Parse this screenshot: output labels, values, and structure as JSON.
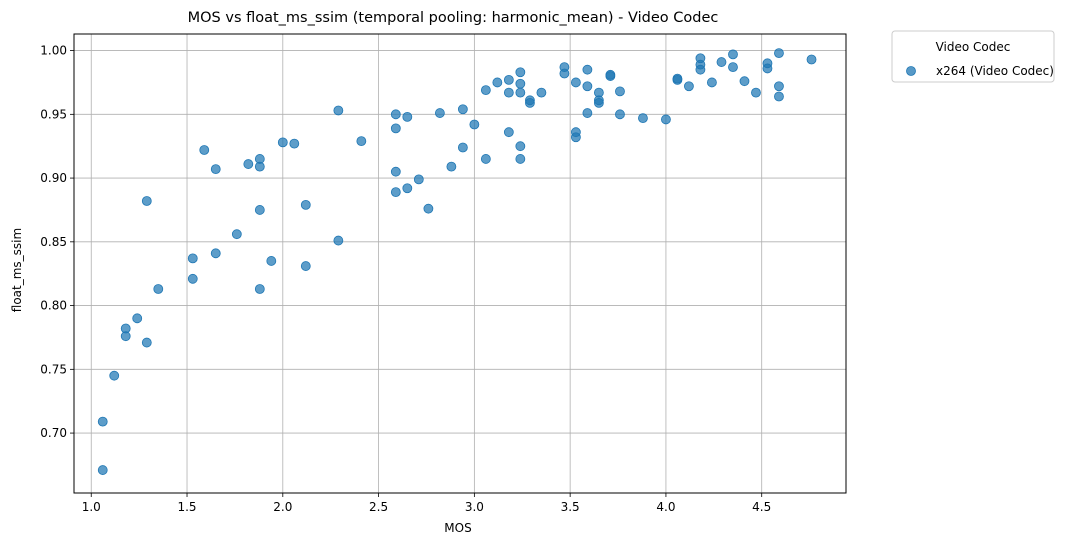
{
  "chart_data": {
    "type": "scatter",
    "title": "MOS vs float_ms_ssim (temporal pooling: harmonic_mean) - Video Codec",
    "xlabel": "MOS",
    "ylabel": "float_ms_ssim",
    "xlim": [
      0.91,
      4.94
    ],
    "ylim": [
      0.653,
      1.013
    ],
    "xticks": [
      1.0,
      1.5,
      2.0,
      2.5,
      3.0,
      3.5,
      4.0,
      4.5
    ],
    "xtick_labels": [
      "1.0",
      "1.5",
      "2.0",
      "2.5",
      "3.0",
      "3.5",
      "4.0",
      "4.5"
    ],
    "yticks": [
      0.7,
      0.75,
      0.8,
      0.85,
      0.9,
      0.95,
      1.0
    ],
    "ytick_labels": [
      "0.70",
      "0.75",
      "0.80",
      "0.85",
      "0.90",
      "0.95",
      "1.00"
    ],
    "grid": true,
    "legend": {
      "title": "Video Codec",
      "placement": "outside-top-right"
    },
    "marker_color": "#1f77b4",
    "series": [
      {
        "name": "x264 (Video Codec)",
        "points": [
          [
            1.06,
            0.671
          ],
          [
            1.06,
            0.709
          ],
          [
            1.12,
            0.745
          ],
          [
            1.18,
            0.776
          ],
          [
            1.18,
            0.782
          ],
          [
            1.24,
            0.79
          ],
          [
            1.29,
            0.771
          ],
          [
            1.29,
            0.882
          ],
          [
            1.35,
            0.813
          ],
          [
            1.53,
            0.837
          ],
          [
            1.53,
            0.821
          ],
          [
            1.59,
            0.922
          ],
          [
            1.65,
            0.907
          ],
          [
            1.65,
            0.841
          ],
          [
            1.76,
            0.856
          ],
          [
            1.82,
            0.911
          ],
          [
            1.88,
            0.915
          ],
          [
            1.88,
            0.909
          ],
          [
            1.88,
            0.875
          ],
          [
            1.88,
            0.813
          ],
          [
            1.94,
            0.835
          ],
          [
            2.0,
            0.928
          ],
          [
            2.06,
            0.927
          ],
          [
            2.12,
            0.879
          ],
          [
            2.12,
            0.831
          ],
          [
            2.29,
            0.953
          ],
          [
            2.29,
            0.851
          ],
          [
            2.41,
            0.929
          ],
          [
            2.59,
            0.95
          ],
          [
            2.59,
            0.939
          ],
          [
            2.59,
            0.905
          ],
          [
            2.59,
            0.889
          ],
          [
            2.65,
            0.948
          ],
          [
            2.65,
            0.892
          ],
          [
            2.71,
            0.899
          ],
          [
            2.76,
            0.876
          ],
          [
            2.82,
            0.951
          ],
          [
            2.88,
            0.909
          ],
          [
            2.94,
            0.954
          ],
          [
            2.94,
            0.924
          ],
          [
            3.0,
            0.942
          ],
          [
            3.06,
            0.969
          ],
          [
            3.06,
            0.915
          ],
          [
            3.12,
            0.975
          ],
          [
            3.18,
            0.977
          ],
          [
            3.18,
            0.967
          ],
          [
            3.18,
            0.936
          ],
          [
            3.24,
            0.983
          ],
          [
            3.24,
            0.974
          ],
          [
            3.24,
            0.967
          ],
          [
            3.24,
            0.925
          ],
          [
            3.24,
            0.915
          ],
          [
            3.29,
            0.961
          ],
          [
            3.29,
            0.959
          ],
          [
            3.35,
            0.967
          ],
          [
            3.47,
            0.987
          ],
          [
            3.47,
            0.982
          ],
          [
            3.53,
            0.975
          ],
          [
            3.53,
            0.936
          ],
          [
            3.53,
            0.932
          ],
          [
            3.59,
            0.985
          ],
          [
            3.59,
            0.972
          ],
          [
            3.59,
            0.951
          ],
          [
            3.65,
            0.967
          ],
          [
            3.65,
            0.961
          ],
          [
            3.65,
            0.959
          ],
          [
            3.71,
            0.981
          ],
          [
            3.71,
            0.98
          ],
          [
            3.76,
            0.968
          ],
          [
            3.76,
            0.95
          ],
          [
            3.88,
            0.947
          ],
          [
            4.0,
            0.946
          ],
          [
            4.06,
            0.978
          ],
          [
            4.06,
            0.977
          ],
          [
            4.12,
            0.972
          ],
          [
            4.18,
            0.994
          ],
          [
            4.18,
            0.989
          ],
          [
            4.18,
            0.985
          ],
          [
            4.24,
            0.975
          ],
          [
            4.29,
            0.991
          ],
          [
            4.35,
            0.997
          ],
          [
            4.35,
            0.987
          ],
          [
            4.41,
            0.976
          ],
          [
            4.47,
            0.967
          ],
          [
            4.53,
            0.99
          ],
          [
            4.53,
            0.986
          ],
          [
            4.59,
            0.998
          ],
          [
            4.59,
            0.972
          ],
          [
            4.59,
            0.964
          ],
          [
            4.76,
            0.993
          ]
        ]
      }
    ]
  }
}
